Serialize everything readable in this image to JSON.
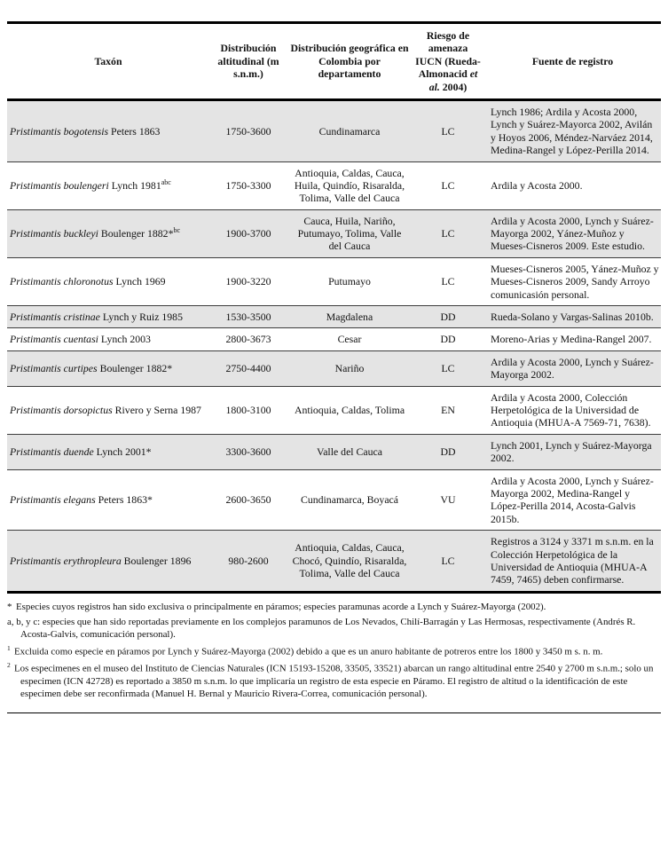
{
  "table": {
    "columns": [
      {
        "label": "Taxón"
      },
      {
        "label": "Distribución altitudinal (m s.n.m.)"
      },
      {
        "label": "Distribución geográfica en Colombia por departamento"
      },
      {
        "label_pre": "Riesgo de amenaza IUCN (Rueda-Almonacid ",
        "label_italic": "et al.",
        "label_post": " 2004)"
      },
      {
        "label": "Fuente de registro"
      }
    ],
    "rows": [
      {
        "name": "Pristimantis bogotensis",
        "authority": " Peters 1863",
        "sup": "",
        "altitude": "1750-3600",
        "departments": "Cundinamarca",
        "iucn": "LC",
        "source": "Lynch 1986; Ardila y Acosta 2000, Lynch y Suárez-Mayorca 2002, Avilán y Hoyos 2006, Méndez-Narváez 2014, Medina-Rangel y López-Perilla 2014."
      },
      {
        "name": "Pristimantis boulengeri",
        "authority": " Lynch 1981",
        "sup": "abc",
        "altitude": "1750-3300",
        "departments": "Antioquia, Caldas, Cauca, Huila, Quindío, Risaralda, Tolima, Valle del Cauca",
        "iucn": "LC",
        "source": "Ardila y Acosta 2000."
      },
      {
        "name": "Pristimantis buckleyi",
        "authority": " Boulenger 1882*",
        "sup": "bc",
        "altitude": "1900-3700",
        "departments": "Cauca, Huila, Nariño, Putumayo, Tolima, Valle del Cauca",
        "iucn": "LC",
        "source": "Ardila y Acosta 2000, Lynch y Suárez-Mayorga 2002, Yánez-Muñoz y Mueses-Cisneros 2009. Este estudio."
      },
      {
        "name": "Pristimantis chloronotus",
        "authority": " Lynch 1969",
        "sup": "",
        "altitude": "1900-3220",
        "departments": "Putumayo",
        "iucn": "LC",
        "source": "Mueses-Cisneros 2005, Yánez-Muñoz y Mueses-Cisneros 2009, Sandy Arroyo comunicasión personal."
      },
      {
        "name": "Pristimantis cristinae",
        "authority": " Lynch y Ruiz 1985",
        "sup": "",
        "altitude": "1530-3500",
        "departments": "Magdalena",
        "iucn": "DD",
        "source": "Rueda-Solano y Vargas-Salinas 2010b."
      },
      {
        "name": "Pristimantis cuentasi",
        "authority": " Lynch 2003",
        "sup": "",
        "altitude": "2800-3673",
        "departments": "Cesar",
        "iucn": "DD",
        "source": "Moreno-Arias y Medina-Rangel 2007."
      },
      {
        "name": "Pristimantis curtipes",
        "authority": " Boulenger 1882*",
        "sup": "",
        "altitude": "2750-4400",
        "departments": "Nariño",
        "iucn": "LC",
        "source": "Ardila y Acosta 2000, Lynch y Suárez-Mayorga 2002."
      },
      {
        "name": "Pristimantis dorsopictus",
        "authority": " Rivero y Serna 1987",
        "sup": "",
        "altitude": "1800-3100",
        "departments": "Antioquia, Caldas, Tolima",
        "iucn": "EN",
        "source": "Ardila y Acosta 2000, Colección Herpetológica de la Universidad de Antioquia (MHUA-A 7569-71, 7638)."
      },
      {
        "name": "Pristimantis duende",
        "authority": " Lynch 2001*",
        "sup": "",
        "altitude": "3300-3600",
        "departments": "Valle del Cauca",
        "iucn": "DD",
        "source": "Lynch 2001, Lynch y Suárez-Mayorga 2002."
      },
      {
        "name": "Pristimantis elegans",
        "authority": " Peters 1863*",
        "sup": "",
        "altitude": "2600-3650",
        "departments": "Cundinamarca, Boyacá",
        "iucn": "VU",
        "source": "Ardila y Acosta 2000, Lynch y Suárez-Mayorga 2002, Medina-Rangel y López-Perilla 2014, Acosta-Galvis 2015b."
      },
      {
        "name": "Pristimantis erythropleura",
        "authority": " Boulenger 1896",
        "sup": "",
        "altitude": "980-2600",
        "departments": "Antioquia, Caldas, Cauca, Chocó, Quindío, Risaralda, Tolima, Valle del Cauca",
        "iucn": "LC",
        "source": "Registros a 3124 y 3371 m s.n.m. en la Colección Herpetológica de la Universidad de Antioquia (MHUA-A 7459, 7465) deben confirmarse."
      }
    ]
  },
  "footnotes": [
    {
      "marker": "*",
      "sup": false,
      "text": "Especies cuyos registros han sido exclusiva o principalmente en páramos; especies paramunas acorde a Lynch y Suárez-Mayorga (2002)."
    },
    {
      "marker": "",
      "sup": false,
      "text": "a, b, y c: especies que han sido reportadas previamente en los complejos paramunos de Los Nevados, Chilí-Barragán y Las Hermosas, respectivamente (Andrés R. Acosta-Galvis, comunicación personal)."
    },
    {
      "marker": "1",
      "sup": true,
      "text": "Excluida como especie en páramos por Lynch y Suárez-Mayorga (2002) debido a que es un anuro habitante de potreros entre los 1800 y 3450 m s. n. m."
    },
    {
      "marker": "2",
      "sup": true,
      "text": "Los especimenes en el museo del Instituto de Ciencias Naturales (ICN 15193-15208, 33505, 33521) abarcan un rango altitudinal entre 2540 y 2700 m s.n.m.; solo un especimen (ICN 42728) es reportado a 3850 m s.n.m. lo que implicaría un registro de esta especie en Páramo. El registro de altitud o la identificación de este especimen debe ser reconfirmada (Manuel H. Bernal y Mauricio Rivera-Correa, comunicación personal)."
    }
  ],
  "colors": {
    "row_shading": "#e4e4e4",
    "border": "#000000",
    "text": "#111111"
  }
}
